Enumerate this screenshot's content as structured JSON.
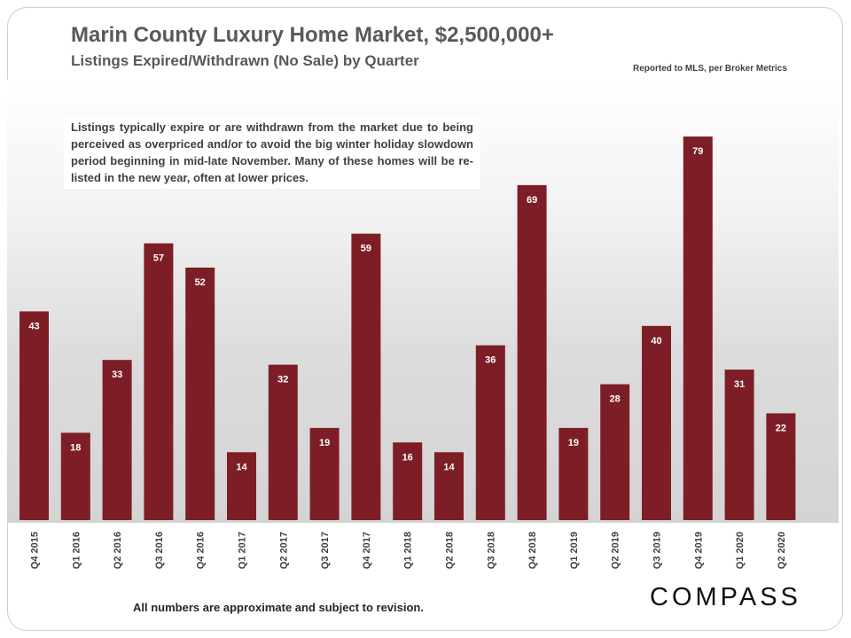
{
  "header": {
    "title": "Marin County Luxury Home Market, $2,500,000+",
    "subtitle": "Listings Expired/Withdrawn  (No Sale) by Quarter",
    "source": "Reported to MLS, per Broker Metrics"
  },
  "annotation": "Listings typically expire or are withdrawn from the market due to being perceived as overpriced and/or to avoid the big winter holiday slowdown period beginning in mid-late November. Many of these homes will be re-listed in the new year, often at lower prices.",
  "footer": {
    "note": "All numbers are approximate and subject to revision.",
    "logo": "COMPASS"
  },
  "colors": {
    "bar": "#7d1e27",
    "bar_label": "#ffffff",
    "tick_label": "#404040"
  },
  "chart_data": {
    "type": "bar",
    "title": "Marin County Luxury Home Market, $2,500,000+",
    "subtitle": "Listings Expired/Withdrawn  (No Sale) by Quarter",
    "xlabel": "",
    "ylabel": "",
    "ylim": [
      0,
      85
    ],
    "grid": false,
    "legend": "none",
    "categories": [
      "Q4 2015",
      "Q1 2016",
      "Q2 2016",
      "Q3 2016",
      "Q4 2016",
      "Q1 2017",
      "Q2 2017",
      "Q3 2017",
      "Q4 2017",
      "Q1 2018",
      "Q2 2018",
      "Q3 2018",
      "Q4 2018",
      "Q1 2019",
      "Q2 2019",
      "Q3 2019",
      "Q4 2019",
      "Q1 2020",
      "Q2 2020"
    ],
    "values": [
      43,
      18,
      33,
      57,
      52,
      14,
      32,
      19,
      59,
      16,
      14,
      36,
      69,
      19,
      28,
      40,
      79,
      31,
      22
    ]
  }
}
